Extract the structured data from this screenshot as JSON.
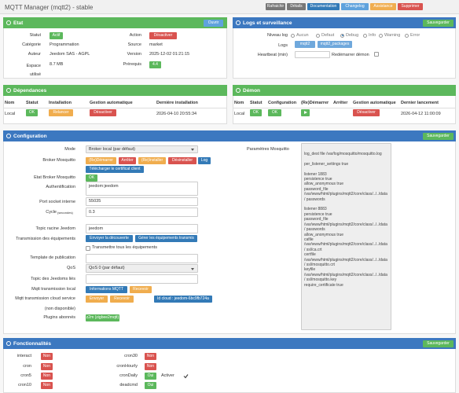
{
  "header": {
    "title": "MQTT Manager (mqtt2) - stable",
    "buttons": [
      "Rafraichir",
      "Détails",
      "Documentation",
      "Changelog",
      "Assistance",
      "Supprimer"
    ]
  },
  "etat": {
    "title": "Etat",
    "open": "Ouvrir",
    "fields": [
      {
        "label": "Statut",
        "value": "Actif"
      },
      {
        "label": "Action",
        "value": "Désactiver"
      },
      {
        "label": "Catégorie",
        "value": "Programmation"
      },
      {
        "label": "Source",
        "value": "market"
      },
      {
        "label": "Auteur",
        "value": "Jeedom SAS - AGPL"
      },
      {
        "label": "Version",
        "value": "2025-12-02 01:21:15"
      },
      {
        "label": "Espace utilisé",
        "value": "8.7 MB"
      },
      {
        "label": "Prérequis",
        "value": "4.4"
      }
    ]
  },
  "logs": {
    "title": "Logs et surveillance",
    "save": "Sauvegarder",
    "level_label": "Niveau log",
    "levels": [
      "Aucun",
      "Defaut",
      "Debug",
      "Info",
      "Warning",
      "Error"
    ],
    "selected_level": "Debug",
    "logs_label": "Logs",
    "logs": [
      "mqtt2",
      "mqtt2_packages"
    ],
    "heartbeat_label": "Heartbeat (min)",
    "restart_label": "Redémarrer démon"
  },
  "dependances": {
    "title": "Dépendances",
    "columns": [
      "Nom",
      "Statut",
      "Installation",
      "Gestion automatique",
      "Dernière installation"
    ],
    "row": {
      "nom": "Local",
      "statut": "OK",
      "installation": "Relancer",
      "gestion": "Désactiver",
      "date": "2026-04-10 20:55:34"
    }
  },
  "demon": {
    "title": "Démon",
    "columns": [
      "Nom",
      "Statut",
      "Configuration",
      "(Re)Démarrer",
      "Arrêter",
      "Gestion automatique",
      "Dernier lancement"
    ],
    "row": {
      "nom": "Local",
      "statut": "OK",
      "configuration": "OK",
      "gestion": "Désactiver",
      "date": "2026-04-12 11:00:09"
    }
  },
  "configuration": {
    "title": "Configuration",
    "save": "Sauvegarder",
    "mode": {
      "label": "Mode",
      "value": "Broker local (par défaut)"
    },
    "broker": {
      "label": "Broker Mosquitto",
      "buttons": [
        "(Re)Démarrer",
        "Arrêter",
        "(Re)Installer",
        "Désinstaller",
        "Log",
        "Télécharger le certificat client"
      ]
    },
    "etat_broker": {
      "label": "Etat Broker Mosquitto",
      "value": "OK"
    },
    "auth": {
      "label": "Authentification",
      "value": "jeedom:jeedom"
    },
    "port": {
      "label": "Port socket interne",
      "value": "55035"
    },
    "cycle": {
      "label": "Cycle",
      "unit": "(secondes)",
      "value": "0.3"
    },
    "topic": {
      "label": "Topic racine Jeedom",
      "value": "jeedom"
    },
    "transmission": {
      "label": "Transmission des équipements",
      "buttons": [
        "Envoyer la découverte",
        "Gérer les équipements transmis"
      ],
      "checkbox": "Transmettre tous les équipements"
    },
    "template": {
      "label": "Template de publication"
    },
    "qos": {
      "label": "QoS",
      "value": "QoS 0 (par défaut)"
    },
    "linked": {
      "label": "Topic des Jeedoms liés"
    },
    "local": {
      "label": "Mqtt transmission local",
      "buttons": [
        "Informations MQTT",
        "Recevoir"
      ]
    },
    "cloud": {
      "label": "Mqtt transmission cloud service",
      "note": "(non disponible)",
      "buttons": [
        "Envoyer",
        "Recevoir"
      ],
      "id": "Id cloud : jeedom-6bc9fb724a"
    },
    "plugins": {
      "label": "Plugins abonnés",
      "values": [
        "z2m (zigbee2mqtt)"
      ]
    },
    "mosquitto": {
      "label": "Paramètres Mosquitto",
      "value": "log_dest file /var/log/mosquitto/mosquitto.log\n\nper_listener_settings true\n\nlistener 1883\npersistence true\nallow_anonymous true\npassword_file /var/www/html/plugins/mqtt2/core/class/../../data/ passwords\n\nlistener 8883\npersistence true\npassword_file /var/www/html/plugins/mqtt2/core/class/../../data/ passwords\nallow_anonymous true\ncafile /var/www/html/plugins/mqtt2/core/class/../../data/ ssl/ca.crt\ncertfile /var/www/html/plugins/mqtt2/core/class/../../data/ ssl/mosquitto.crt\nkeyfile /var/www/html/plugins/mqtt2/core/class/../../data/ ssl/mosquitto.key\nrequire_certificate true"
    }
  },
  "fonctionnalites": {
    "title": "Fonctionnalités",
    "save": "Sauvegarder",
    "items": [
      {
        "name": "interact",
        "value": "Non"
      },
      {
        "name": "cron",
        "value": "Non"
      },
      {
        "name": "cron5",
        "value": "Non"
      },
      {
        "name": "cron10",
        "value": "Non"
      },
      {
        "name": "cron30",
        "value": "Non"
      },
      {
        "name": "cronHourly",
        "value": "Non"
      },
      {
        "name": "cronDaily",
        "value": "Oui"
      },
      {
        "name": "deadcmd",
        "value": "Oui"
      }
    ],
    "activer": "Activer"
  }
}
